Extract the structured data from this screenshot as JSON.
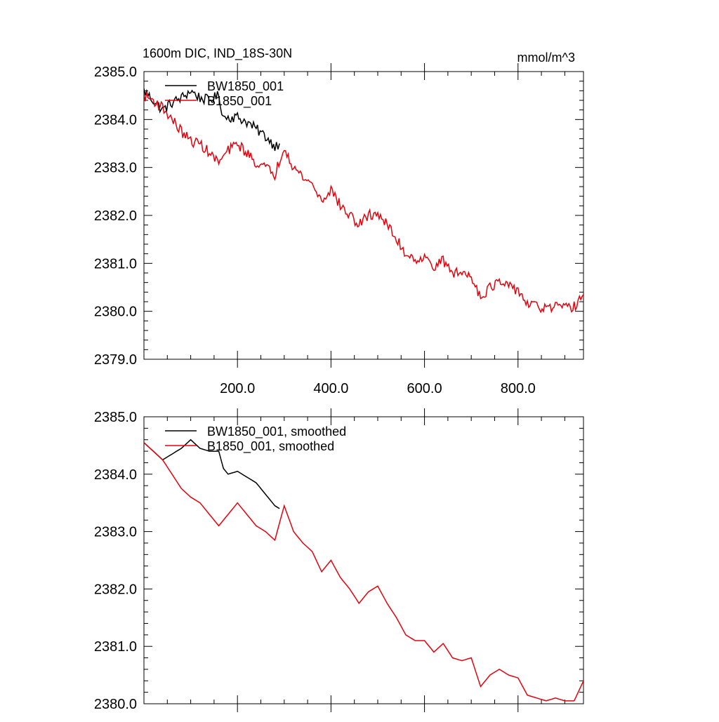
{
  "chart_data": [
    {
      "type": "line",
      "title": "1600m DIC, IND_18S-30N",
      "units": "mmol/m^3",
      "xlim": [
        0,
        940
      ],
      "ylim": [
        2379,
        2385
      ],
      "xticks": [
        200,
        400,
        600,
        800
      ],
      "xtick_labels": [
        "200.0",
        "400.0",
        "600.0",
        "800.0"
      ],
      "yticks": [
        2379,
        2380,
        2381,
        2382,
        2383,
        2384,
        2385
      ],
      "ytick_labels": [
        "2379.0",
        "2380.0",
        "2381.0",
        "2382.0",
        "2383.0",
        "2384.0",
        "2385.0"
      ],
      "grid": false,
      "legend_position": "top-left",
      "noisy": true,
      "series": [
        {
          "name": "BW1850_001",
          "color": "#000000",
          "x": [
            0,
            20,
            40,
            60,
            80,
            100,
            120,
            140,
            160,
            170,
            180,
            200,
            220,
            240,
            260,
            280,
            290
          ],
          "y": [
            2384.6,
            2384.4,
            2384.2,
            2384.35,
            2384.45,
            2384.6,
            2384.45,
            2384.4,
            2384.5,
            2384.05,
            2384.05,
            2384.05,
            2383.95,
            2383.8,
            2383.65,
            2383.45,
            2383.5
          ]
        },
        {
          "name": "B1850_001",
          "color": "#e8000b",
          "x": [
            0,
            20,
            40,
            60,
            80,
            100,
            120,
            140,
            160,
            180,
            200,
            220,
            240,
            260,
            280,
            300,
            320,
            340,
            360,
            380,
            400,
            420,
            440,
            460,
            480,
            500,
            520,
            540,
            560,
            580,
            600,
            620,
            640,
            660,
            680,
            700,
            720,
            740,
            760,
            780,
            800,
            820,
            840,
            860,
            880,
            900,
            920,
            940
          ],
          "y": [
            2384.5,
            2384.4,
            2384.25,
            2384.0,
            2383.75,
            2383.55,
            2383.5,
            2383.3,
            2383.1,
            2383.35,
            2383.5,
            2383.3,
            2383.1,
            2383.0,
            2382.85,
            2383.45,
            2383.0,
            2382.8,
            2382.65,
            2382.3,
            2382.55,
            2382.2,
            2382.0,
            2381.8,
            2382.0,
            2382.05,
            2381.8,
            2381.5,
            2381.2,
            2381.1,
            2381.1,
            2380.95,
            2381.05,
            2380.8,
            2380.8,
            2380.75,
            2380.3,
            2380.5,
            2380.6,
            2380.5,
            2380.45,
            2380.15,
            2380.1,
            2380.05,
            2380.1,
            2380.05,
            2380.1,
            2380.35
          ]
        }
      ]
    },
    {
      "type": "line",
      "xlim": [
        0,
        940
      ],
      "ylim": [
        2380,
        2385
      ],
      "xticks": [
        200,
        400,
        600,
        800
      ],
      "yticks": [
        2380,
        2381,
        2382,
        2383,
        2384,
        2385
      ],
      "ytick_labels": [
        "2380.0",
        "2381.0",
        "2382.0",
        "2383.0",
        "2384.0",
        "2385.0"
      ],
      "grid": false,
      "legend_position": "top-left",
      "noisy": false,
      "series": [
        {
          "name": "BW1850_001, smoothed",
          "color": "#000000",
          "x": [
            0,
            20,
            40,
            60,
            80,
            100,
            120,
            140,
            160,
            170,
            180,
            200,
            220,
            240,
            260,
            280,
            290
          ],
          "y": [
            2384.55,
            2384.4,
            2384.25,
            2384.35,
            2384.45,
            2384.6,
            2384.45,
            2384.4,
            2384.4,
            2384.1,
            2384.0,
            2384.05,
            2383.95,
            2383.85,
            2383.65,
            2383.45,
            2383.4
          ]
        },
        {
          "name": "B1850_001, smoothed",
          "color": "#e8000b",
          "x": [
            0,
            20,
            40,
            60,
            80,
            100,
            120,
            140,
            160,
            180,
            200,
            220,
            240,
            260,
            280,
            300,
            320,
            340,
            360,
            380,
            400,
            420,
            440,
            460,
            480,
            500,
            520,
            540,
            560,
            580,
            600,
            620,
            640,
            660,
            680,
            700,
            720,
            740,
            760,
            780,
            800,
            820,
            840,
            860,
            880,
            900,
            920,
            940
          ],
          "y": [
            2384.55,
            2384.4,
            2384.25,
            2384.0,
            2383.75,
            2383.6,
            2383.5,
            2383.3,
            2383.1,
            2383.3,
            2383.5,
            2383.3,
            2383.1,
            2383.0,
            2382.85,
            2383.45,
            2383.0,
            2382.8,
            2382.65,
            2382.3,
            2382.5,
            2382.2,
            2382.0,
            2381.75,
            2381.95,
            2382.05,
            2381.75,
            2381.5,
            2381.2,
            2381.1,
            2381.1,
            2380.9,
            2381.05,
            2380.8,
            2380.75,
            2380.8,
            2380.3,
            2380.5,
            2380.6,
            2380.5,
            2380.45,
            2380.15,
            2380.1,
            2380.05,
            2380.1,
            2380.05,
            2380.05,
            2380.4
          ]
        }
      ]
    }
  ]
}
